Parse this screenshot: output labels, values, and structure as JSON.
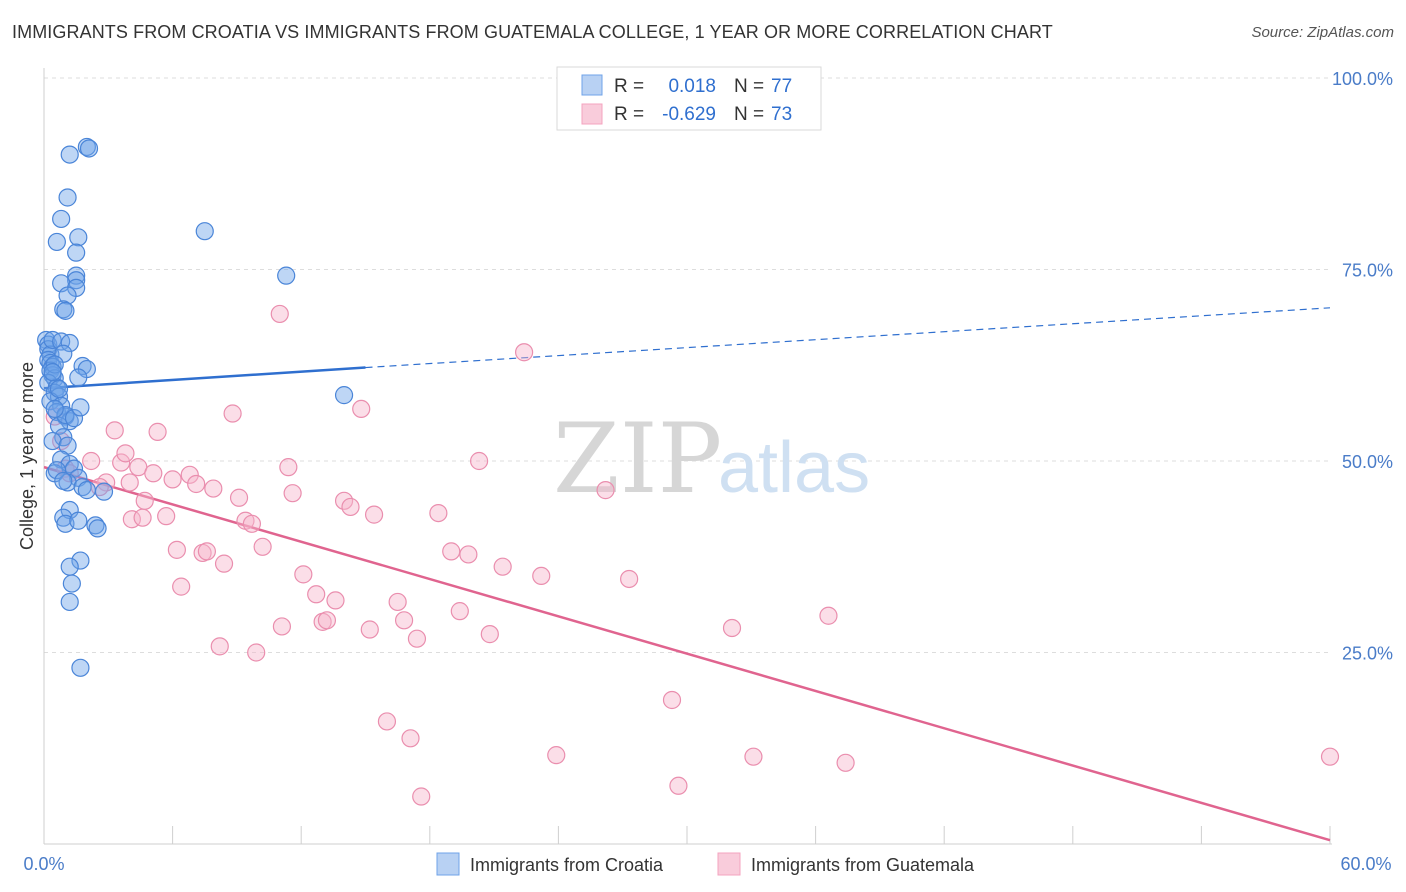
{
  "title": "IMMIGRANTS FROM CROATIA VS IMMIGRANTS FROM GUATEMALA COLLEGE, 1 YEAR OR MORE CORRELATION CHART",
  "source": "Source: ZipAtlas.com",
  "watermark": {
    "zip": "ZIP",
    "atlas": "atlas"
  },
  "legend_top": {
    "r_label": "R =",
    "n_label": "N =",
    "rows": [
      {
        "r": "0.018",
        "n": "77",
        "color": "#6fa3e8"
      },
      {
        "r": "-0.629",
        "n": "73",
        "color": "#f4a3bf"
      }
    ]
  },
  "chart_data": {
    "type": "scatter",
    "title": "IMMIGRANTS FROM CROATIA VS IMMIGRANTS FROM GUATEMALA COLLEGE, 1 YEAR OR MORE CORRELATION CHART",
    "xlabel": "",
    "ylabel": "College, 1 year or more",
    "xlim": [
      0,
      60
    ],
    "ylim": [
      0,
      100
    ],
    "x_tick_labels": [
      "0.0%",
      "60.0%"
    ],
    "y_ticks": [
      25,
      50,
      75,
      100
    ],
    "y_tick_labels": [
      "25.0%",
      "50.0%",
      "75.0%",
      "100.0%"
    ],
    "grid": true,
    "legend_position": "bottom",
    "series": [
      {
        "name": "Immigrants from Croatia",
        "color": "#6fa3e8",
        "stroke": "#4a85d8",
        "trend": {
          "x": [
            0,
            15
          ],
          "y": [
            59.5,
            62.2
          ],
          "extended_x": [
            15,
            60
          ],
          "extended_y": [
            62.2,
            70.0
          ],
          "color": "#2f6fcf"
        },
        "points": [
          [
            0.1,
            65.8
          ],
          [
            0.2,
            65.2
          ],
          [
            0.2,
            64.6
          ],
          [
            0.3,
            63.9
          ],
          [
            0.2,
            63.2
          ],
          [
            0.3,
            62.8
          ],
          [
            0.4,
            62.3
          ],
          [
            0.3,
            61.8
          ],
          [
            0.4,
            61.2
          ],
          [
            0.5,
            60.8
          ],
          [
            0.2,
            60.2
          ],
          [
            0.6,
            59.6
          ],
          [
            0.5,
            58.9
          ],
          [
            0.7,
            58.4
          ],
          [
            0.3,
            57.8
          ],
          [
            0.8,
            57.2
          ],
          [
            0.6,
            56.4
          ],
          [
            1.0,
            55.8
          ],
          [
            1.2,
            55.2
          ],
          [
            0.7,
            54.6
          ],
          [
            0.9,
            53.1
          ],
          [
            0.4,
            52.6
          ],
          [
            1.1,
            52.0
          ],
          [
            0.8,
            50.2
          ],
          [
            1.2,
            49.6
          ],
          [
            1.4,
            49.0
          ],
          [
            0.5,
            48.4
          ],
          [
            1.6,
            47.8
          ],
          [
            1.1,
            47.2
          ],
          [
            1.8,
            46.6
          ],
          [
            2.0,
            46.2
          ],
          [
            2.8,
            46.0
          ],
          [
            1.2,
            43.6
          ],
          [
            0.9,
            42.6
          ],
          [
            1.0,
            41.8
          ],
          [
            1.6,
            42.2
          ],
          [
            2.4,
            41.6
          ],
          [
            2.5,
            41.2
          ],
          [
            1.7,
            37.0
          ],
          [
            1.2,
            36.2
          ],
          [
            1.3,
            34.0
          ],
          [
            1.2,
            31.6
          ],
          [
            1.7,
            23.0
          ],
          [
            2.0,
            91.0
          ],
          [
            2.1,
            90.8
          ],
          [
            1.2,
            90.0
          ],
          [
            1.1,
            84.4
          ],
          [
            0.8,
            81.6
          ],
          [
            1.6,
            79.2
          ],
          [
            0.6,
            78.6
          ],
          [
            1.5,
            77.2
          ],
          [
            7.5,
            80.0
          ],
          [
            1.5,
            74.2
          ],
          [
            1.5,
            73.6
          ],
          [
            0.8,
            73.2
          ],
          [
            1.5,
            72.6
          ],
          [
            1.1,
            71.6
          ],
          [
            11.3,
            74.2
          ],
          [
            0.9,
            69.8
          ],
          [
            1.0,
            69.6
          ],
          [
            0.4,
            65.8
          ],
          [
            0.8,
            65.6
          ],
          [
            1.2,
            65.4
          ],
          [
            0.9,
            64.0
          ],
          [
            1.8,
            62.4
          ],
          [
            2.0,
            62.0
          ],
          [
            0.5,
            62.6
          ],
          [
            0.4,
            61.6
          ],
          [
            1.6,
            60.9
          ],
          [
            0.7,
            59.4
          ],
          [
            14.0,
            58.6
          ],
          [
            1.0,
            56.0
          ],
          [
            1.4,
            55.6
          ],
          [
            0.5,
            56.8
          ],
          [
            1.7,
            57.0
          ],
          [
            0.6,
            48.8
          ],
          [
            0.9,
            47.4
          ]
        ]
      },
      {
        "name": "Immigrants from Guatemala",
        "color": "#f6b6cc",
        "stroke": "#ea8eae",
        "trend": {
          "x": [
            0,
            60
          ],
          "y": [
            49.2,
            0.5
          ],
          "color": "#e0648f"
        },
        "points": [
          [
            0.5,
            55.8
          ],
          [
            0.8,
            52.6
          ],
          [
            1.0,
            49.0
          ],
          [
            1.2,
            48.4
          ],
          [
            2.2,
            50.0
          ],
          [
            2.9,
            47.2
          ],
          [
            3.3,
            54.0
          ],
          [
            3.6,
            49.8
          ],
          [
            3.8,
            51.0
          ],
          [
            4.1,
            42.4
          ],
          [
            4.4,
            49.2
          ],
          [
            4.6,
            42.6
          ],
          [
            4.7,
            44.8
          ],
          [
            5.1,
            48.4
          ],
          [
            5.3,
            53.8
          ],
          [
            5.7,
            42.8
          ],
          [
            6.0,
            47.6
          ],
          [
            6.2,
            38.4
          ],
          [
            6.4,
            33.6
          ],
          [
            6.8,
            48.2
          ],
          [
            7.1,
            47.0
          ],
          [
            7.4,
            38.0
          ],
          [
            7.6,
            38.2
          ],
          [
            7.9,
            46.4
          ],
          [
            8.2,
            25.8
          ],
          [
            8.4,
            36.6
          ],
          [
            8.8,
            56.2
          ],
          [
            9.1,
            45.2
          ],
          [
            9.4,
            42.2
          ],
          [
            9.7,
            41.8
          ],
          [
            9.9,
            25.0
          ],
          [
            10.2,
            38.8
          ],
          [
            11.1,
            28.4
          ],
          [
            11.4,
            49.2
          ],
          [
            11.6,
            45.8
          ],
          [
            12.1,
            35.2
          ],
          [
            12.7,
            32.6
          ],
          [
            13.0,
            29.0
          ],
          [
            13.2,
            29.2
          ],
          [
            13.6,
            31.8
          ],
          [
            14.0,
            44.8
          ],
          [
            14.3,
            44.0
          ],
          [
            14.8,
            56.8
          ],
          [
            15.2,
            28.0
          ],
          [
            15.4,
            43.0
          ],
          [
            16.0,
            16.0
          ],
          [
            16.5,
            31.6
          ],
          [
            16.8,
            29.2
          ],
          [
            17.1,
            13.8
          ],
          [
            17.4,
            26.8
          ],
          [
            17.6,
            6.2
          ],
          [
            18.4,
            43.2
          ],
          [
            19.0,
            38.2
          ],
          [
            19.4,
            30.4
          ],
          [
            19.8,
            37.8
          ],
          [
            20.3,
            50.0
          ],
          [
            20.8,
            27.4
          ],
          [
            21.4,
            36.2
          ],
          [
            22.4,
            64.2
          ],
          [
            23.2,
            35.0
          ],
          [
            23.9,
            11.6
          ],
          [
            26.2,
            46.2
          ],
          [
            27.3,
            34.6
          ],
          [
            29.3,
            18.8
          ],
          [
            29.6,
            7.6
          ],
          [
            32.1,
            28.2
          ],
          [
            33.1,
            11.4
          ],
          [
            36.6,
            29.8
          ],
          [
            37.4,
            10.6
          ],
          [
            11.0,
            69.2
          ],
          [
            4.0,
            47.2
          ],
          [
            2.6,
            46.6
          ],
          [
            60.0,
            11.4
          ]
        ]
      }
    ]
  }
}
